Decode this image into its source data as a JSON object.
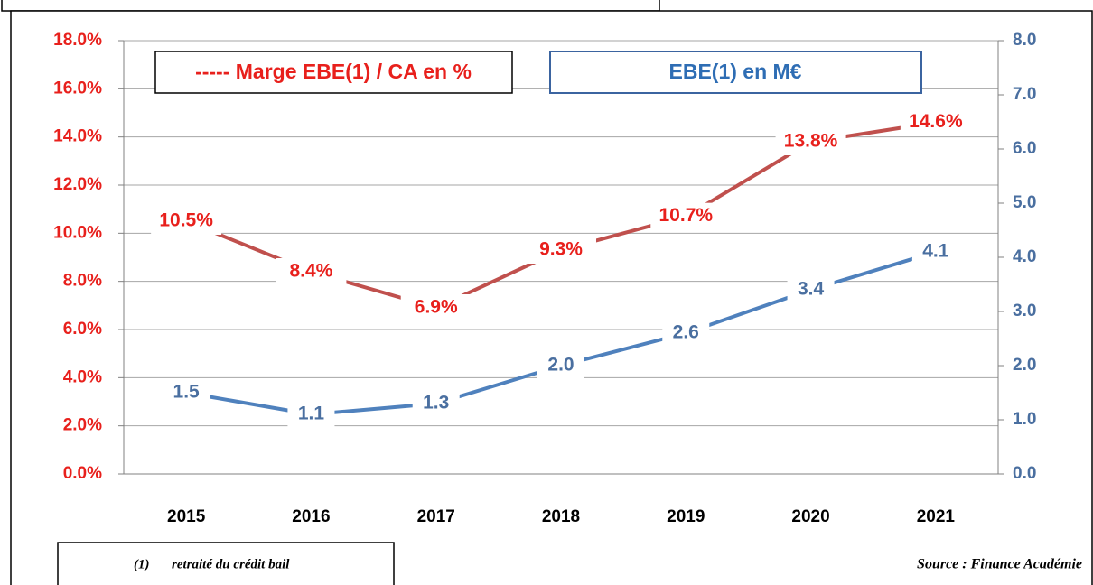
{
  "chart_data": {
    "type": "line",
    "categories": [
      "2015",
      "2016",
      "2017",
      "2018",
      "2019",
      "2020",
      "2021"
    ],
    "series": [
      {
        "name": "----- Marge EBE(1) / CA en %",
        "color": "#c0504d",
        "axis": "y",
        "values": [
          10.5,
          8.4,
          6.9,
          9.3,
          10.7,
          13.8,
          14.6
        ],
        "value_labels": [
          "10.5%",
          "8.4%",
          "6.9%",
          "9.3%",
          "10.7%",
          "13.8%",
          "14.6%"
        ]
      },
      {
        "name": "EBE(1) en M€",
        "color": "#4f81bd",
        "axis": "y2",
        "values": [
          1.5,
          1.1,
          1.3,
          2.0,
          2.6,
          3.4,
          4.1
        ],
        "value_labels": [
          "1.5",
          "1.1",
          "1.3",
          "2.0",
          "2.6",
          "3.4",
          "4.1"
        ]
      }
    ],
    "ylim": [
      0,
      18
    ],
    "yticks": [
      {
        "value": 0,
        "label": "0.0%"
      },
      {
        "value": 2,
        "label": "2.0%"
      },
      {
        "value": 4,
        "label": "4.0%"
      },
      {
        "value": 6,
        "label": "6.0%"
      },
      {
        "value": 8,
        "label": "8.0%"
      },
      {
        "value": 10,
        "label": "10.0%"
      },
      {
        "value": 12,
        "label": "12.0%"
      },
      {
        "value": 14,
        "label": "14.0%"
      },
      {
        "value": 16,
        "label": "16.0%"
      },
      {
        "value": 18,
        "label": "18.0%"
      }
    ],
    "y2lim": [
      0,
      8
    ],
    "y2ticks": [
      {
        "value": 0,
        "label": "0.0"
      },
      {
        "value": 1,
        "label": "1.0"
      },
      {
        "value": 2,
        "label": "2.0"
      },
      {
        "value": 3,
        "label": "3.0"
      },
      {
        "value": 4,
        "label": "4.0"
      },
      {
        "value": 5,
        "label": "5.0"
      },
      {
        "value": 6,
        "label": "6.0"
      },
      {
        "value": 7,
        "label": "7.0"
      },
      {
        "value": 8,
        "label": "8.0"
      }
    ],
    "grid": true,
    "footnote": {
      "marker": "(1)",
      "text": "retraité du crédit bail"
    },
    "source": "Source : Finance Académie"
  }
}
